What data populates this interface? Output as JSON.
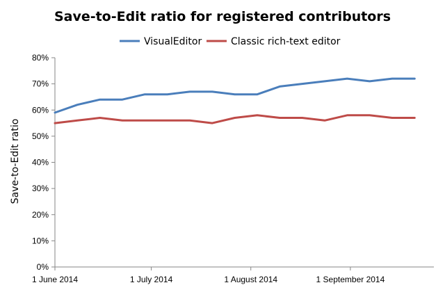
{
  "colors": {
    "visual_editor": "#4a7ebb",
    "classic_editor": "#be4b48",
    "axis": "#868686"
  },
  "chart_data": {
    "type": "line",
    "title": "Save-to-Edit ratio for registered contributors",
    "xlabel": "",
    "ylabel": "Save-to-Edit ratio",
    "ylim": [
      0,
      80
    ],
    "y_ticks": [
      "0%",
      "10%",
      "20%",
      "30%",
      "40%",
      "50%",
      "60%",
      "70%",
      "80%"
    ],
    "x_tick_labels": [
      "1 June 2014",
      "1 July 2014",
      "1 August 2014",
      "1 September 2014"
    ],
    "x": [
      "2014-06-01",
      "2014-06-08",
      "2014-06-15",
      "2014-06-22",
      "2014-06-29",
      "2014-07-06",
      "2014-07-13",
      "2014-07-20",
      "2014-07-27",
      "2014-08-03",
      "2014-08-10",
      "2014-08-17",
      "2014-08-24",
      "2014-08-31",
      "2014-09-07",
      "2014-09-14",
      "2014-09-21"
    ],
    "legend_position": "top",
    "grid": false,
    "series": [
      {
        "name": "VisualEditor",
        "color": "#4a7ebb",
        "values": [
          59,
          62,
          64,
          64,
          66,
          66,
          67,
          67,
          66,
          66,
          69,
          70,
          71,
          72,
          71,
          72,
          72
        ]
      },
      {
        "name": "Classic rich-text editor",
        "color": "#be4b48",
        "values": [
          55,
          56,
          57,
          56,
          56,
          56,
          56,
          55,
          57,
          58,
          57,
          57,
          56,
          58,
          58,
          57,
          57
        ]
      }
    ]
  }
}
